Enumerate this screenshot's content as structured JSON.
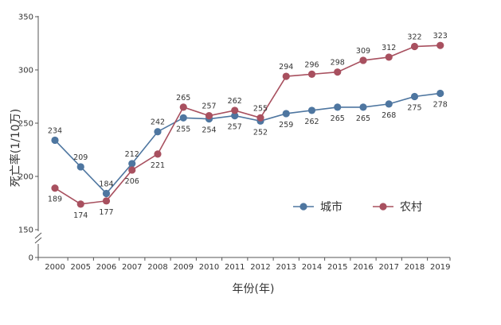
{
  "chart_data": {
    "type": "line",
    "title": "",
    "ylabel": "死亡率(1/10万)",
    "xlabel": "年份(年)",
    "categories": [
      "2000",
      "2005",
      "2006",
      "2007",
      "2008",
      "2009",
      "2010",
      "2011",
      "2012",
      "2013",
      "2014",
      "2015",
      "2016",
      "2017",
      "2018",
      "2019"
    ],
    "y_ticks": [
      0,
      150,
      200,
      250,
      300,
      350
    ],
    "y_axis_break": "between 0 and 150",
    "ylim": [
      150,
      350
    ],
    "grid": false,
    "legend_position": "right-middle",
    "series": [
      {
        "name": "城市",
        "color": "#4e76a0",
        "values": [
          234,
          209,
          184,
          212,
          242,
          255,
          254,
          257,
          252,
          259,
          262,
          265,
          265,
          268,
          275,
          278
        ]
      },
      {
        "name": "农村",
        "color": "#a8505f",
        "values": [
          189,
          174,
          177,
          206,
          221,
          265,
          257,
          262,
          255,
          294,
          296,
          298,
          309,
          312,
          322,
          323
        ]
      }
    ]
  }
}
